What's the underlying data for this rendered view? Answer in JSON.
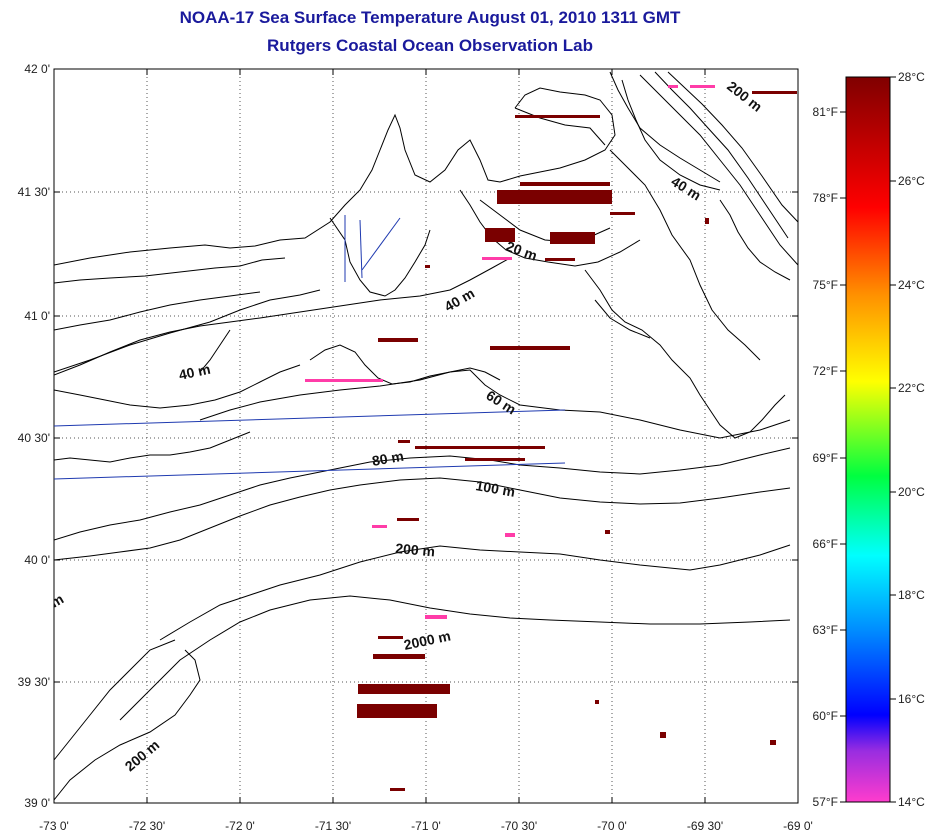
{
  "title": "NOAA-17 Sea Surface Temperature August 01, 2010 1311 GMT",
  "subtitle": "Rutgers Coastal Ocean Observation Lab",
  "lat_labels": [
    "42 0'",
    "41 30'",
    "41 0'",
    "40 30'",
    "40 0'",
    "39 30'",
    "39 0'"
  ],
  "lon_labels": [
    "-73 0'",
    "-72 30'",
    "-72 0'",
    "-71 30'",
    "-71 0'",
    "-70 30'",
    "-70 0'",
    "-69 30'",
    "-69 0'"
  ],
  "contour_labels": [
    "200 m",
    "40 m",
    "20 m",
    "40 m",
    "40 m",
    "60 m",
    "80 m",
    "100 m",
    "200 m",
    "2000 m",
    "200 m",
    "m"
  ],
  "colorbar": {
    "fahrenheit": [
      "81°F",
      "78°F",
      "75°F",
      "72°F",
      "69°F",
      "66°F",
      "63°F",
      "60°F",
      "57°F"
    ],
    "celsius": [
      "28°C",
      "26°C",
      "24°C",
      "22°C",
      "20°C",
      "18°C",
      "16°C",
      "14°C"
    ]
  },
  "colors": {
    "title": "#1a1a9c",
    "warm_patch": "#7a0000",
    "cool_patch": "#ff3ca8",
    "track_line": "#1f3ab0"
  }
}
